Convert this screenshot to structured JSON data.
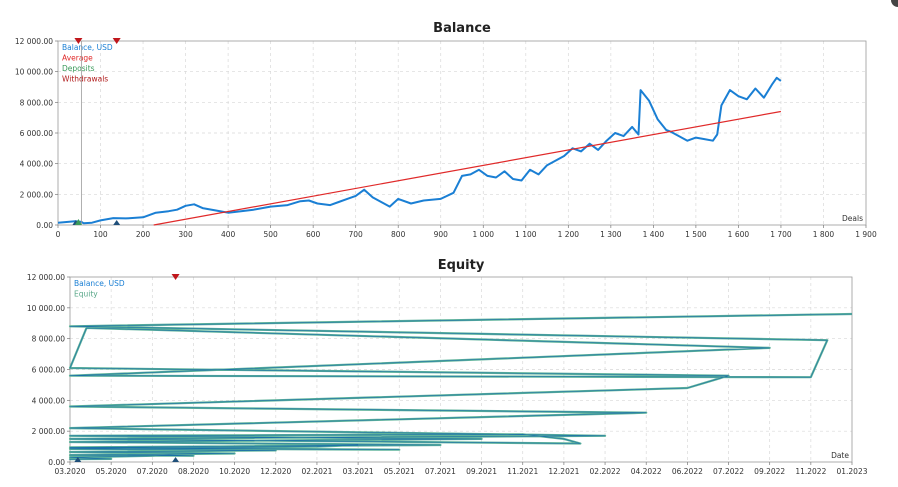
{
  "chart_data": [
    {
      "type": "line",
      "title": "Balance",
      "xlabel": "Deals",
      "ylabel": "",
      "xlim": [
        0,
        1900
      ],
      "ylim": [
        0,
        12000
      ],
      "x_ticks": [
        {
          "v": 0,
          "label": "0"
        },
        {
          "v": 100,
          "label": "100"
        },
        {
          "v": 200,
          "label": "200"
        },
        {
          "v": 300,
          "label": "300"
        },
        {
          "v": 400,
          "label": "400"
        },
        {
          "v": 500,
          "label": "500"
        },
        {
          "v": 600,
          "label": "600"
        },
        {
          "v": 700,
          "label": "700"
        },
        {
          "v": 800,
          "label": "800"
        },
        {
          "v": 900,
          "label": "900"
        },
        {
          "v": 1000,
          "label": "1 000"
        },
        {
          "v": 1100,
          "label": "1 100"
        },
        {
          "v": 1200,
          "label": "1 200"
        },
        {
          "v": 1300,
          "label": "1 300"
        },
        {
          "v": 1400,
          "label": "1 400"
        },
        {
          "v": 1500,
          "label": "1 500"
        },
        {
          "v": 1600,
          "label": "1 600"
        },
        {
          "v": 1700,
          "label": "1 700"
        },
        {
          "v": 1800,
          "label": "1 800"
        },
        {
          "v": 1900,
          "label": "1 900"
        }
      ],
      "y_ticks": [
        {
          "v": 0,
          "label": "0.00"
        },
        {
          "v": 2000,
          "label": "2 000.00"
        },
        {
          "v": 4000,
          "label": "4 000.00"
        },
        {
          "v": 6000,
          "label": "6 000.00"
        },
        {
          "v": 8000,
          "label": "8 000.00"
        },
        {
          "v": 10000,
          "label": "10 000.00"
        },
        {
          "v": 12000,
          "label": "12 000.00"
        }
      ],
      "grid": true,
      "legend_position": "top-left",
      "legend": [
        {
          "label": "Balance, USD",
          "color": "#1a7fd4"
        },
        {
          "label": "Average",
          "color": "#e02a2a"
        },
        {
          "label": "Deposits",
          "color": "#3a9a5a"
        },
        {
          "label": "Withdrawals",
          "color": "#b01a1a"
        }
      ],
      "series": [
        {
          "name": "Balance, USD",
          "color": "#1a7fd4",
          "x": [
            0,
            40,
            55,
            60,
            80,
            100,
            130,
            160,
            200,
            230,
            260,
            280,
            300,
            320,
            340,
            370,
            400,
            430,
            460,
            500,
            540,
            570,
            590,
            610,
            640,
            660,
            680,
            700,
            720,
            740,
            760,
            780,
            800,
            830,
            860,
            900,
            930,
            950,
            970,
            990,
            1010,
            1030,
            1050,
            1070,
            1090,
            1110,
            1130,
            1150,
            1170,
            1190,
            1210,
            1230,
            1250,
            1270,
            1290,
            1310,
            1330,
            1350,
            1365,
            1370,
            1390,
            1410,
            1430,
            1440,
            1460,
            1480,
            1500,
            1520,
            1540,
            1550,
            1560,
            1580,
            1600,
            1620,
            1640,
            1660,
            1680,
            1690,
            1700
          ],
          "y": [
            150,
            250,
            200,
            120,
            150,
            300,
            450,
            430,
            500,
            800,
            900,
            1000,
            1250,
            1350,
            1100,
            950,
            800,
            900,
            1000,
            1200,
            1300,
            1550,
            1600,
            1400,
            1300,
            1500,
            1700,
            1900,
            2300,
            1800,
            1500,
            1200,
            1700,
            1400,
            1600,
            1700,
            2100,
            3200,
            3300,
            3600,
            3200,
            3100,
            3500,
            3000,
            2900,
            3600,
            3300,
            3900,
            4200,
            4500,
            5000,
            4800,
            5300,
            4900,
            5500,
            6000,
            5800,
            6400,
            5900,
            8800,
            8100,
            6900,
            6200,
            6100,
            5800,
            5500,
            5700,
            5600,
            5500,
            5900,
            7800,
            8800,
            8400,
            8200,
            8900,
            8300,
            9200,
            9600,
            9400
          ]
        },
        {
          "name": "Average",
          "color": "#e02a2a",
          "x": [
            225,
            1700
          ],
          "y": [
            0,
            7400
          ]
        }
      ]
    },
    {
      "type": "line",
      "title": "Equity",
      "xlabel": "Date",
      "ylabel": "",
      "ylim": [
        0,
        12000
      ],
      "x_ticks": [
        {
          "label": "03.2020"
        },
        {
          "label": "05.2020"
        },
        {
          "label": "07.2020"
        },
        {
          "label": "08.2020"
        },
        {
          "label": "10.2020"
        },
        {
          "label": "12.2020"
        },
        {
          "label": "02.2021"
        },
        {
          "label": "03.2021"
        },
        {
          "label": "05.2021"
        },
        {
          "label": "07.2021"
        },
        {
          "label": "09.2021"
        },
        {
          "label": "11.2021"
        },
        {
          "label": "12.2021"
        },
        {
          "label": "02.2022"
        },
        {
          "label": "04.2022"
        },
        {
          "label": "06.2022"
        },
        {
          "label": "07.2022"
        },
        {
          "label": "09.2022"
        },
        {
          "label": "11.2022"
        },
        {
          "label": "01.2023"
        }
      ],
      "y_ticks": [
        {
          "v": 0,
          "label": "0.00"
        },
        {
          "v": 2000,
          "label": "2 000.00"
        },
        {
          "v": 4000,
          "label": "4 000.00"
        },
        {
          "v": 6000,
          "label": "6 000.00"
        },
        {
          "v": 8000,
          "label": "8 000.00"
        },
        {
          "v": 10000,
          "label": "10 000.00"
        },
        {
          "v": 12000,
          "label": "12 000.00"
        }
      ],
      "grid": true,
      "legend_position": "top-left",
      "legend": [
        {
          "label": "Balance, USD",
          "color": "#1a7fd4"
        },
        {
          "label": "Equity",
          "color": "#5aa88a"
        }
      ],
      "series": [
        {
          "name": "Equity",
          "color": "#5fb39a",
          "x": [
            "03.2020",
            "04.2020",
            "05.2020",
            "06.2020",
            "07.2020",
            "07.2020",
            "08.2020",
            "09.2020",
            "10.2020",
            "11.2020",
            "12.2020",
            "01.2021",
            "02.2021",
            "03.2021",
            "04.2021",
            "05.2021",
            "06.2021",
            "07.2021",
            "08.2021",
            "09.2021",
            "10.2021",
            "11.2021",
            "12.2021",
            "12.2021",
            "01.2022",
            "02.2022",
            "03.2022",
            "04.2022",
            "05.2022",
            "06.2022",
            "07.2022",
            "08.2022",
            "08.2022",
            "09.2022",
            "10.2022",
            "11.2022",
            "11.2022",
            "12.2022",
            "01.2023"
          ],
          "y": [
            150,
            180,
            200,
            300,
            400,
            450,
            400,
            450,
            550,
            650,
            750,
            850,
            1000,
            1100,
            900,
            800,
            950,
            1100,
            1300,
            1500,
            1700,
            1800,
            1500,
            1200,
            1500,
            1700,
            2200,
            3200,
            3600,
            4800,
            5600,
            6100,
            8700,
            7400,
            5600,
            5500,
            7900,
            8800,
            9600
          ]
        }
      ]
    }
  ]
}
